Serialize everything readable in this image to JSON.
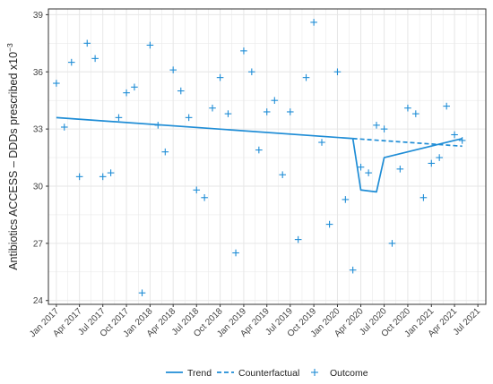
{
  "colors": {
    "series": "#1f8dd6",
    "grid": "#e6e6e6",
    "panel_border": "#333333",
    "text": "#444444"
  },
  "chart_data": {
    "type": "line",
    "ylabel": "Antibiotics ACCESS – DDDs prescribed x10",
    "ylabel_exponent": "−3",
    "xlim": [
      "2016-12-01",
      "2021-08-01"
    ],
    "ylim": [
      23.8,
      39.3
    ],
    "y_ticks": [
      24,
      27,
      30,
      33,
      36,
      39
    ],
    "y_tick_labels": [
      "24",
      "27",
      "30",
      "33",
      "36",
      "39"
    ],
    "x_ticks": [
      "2017-01-01",
      "2017-04-01",
      "2017-07-01",
      "2017-10-01",
      "2018-01-01",
      "2018-04-01",
      "2018-07-01",
      "2018-10-01",
      "2019-01-01",
      "2019-04-01",
      "2019-07-01",
      "2019-10-01",
      "2020-01-01",
      "2020-04-01",
      "2020-07-01",
      "2020-10-01",
      "2021-01-01",
      "2021-04-01",
      "2021-07-01"
    ],
    "x_tick_labels": [
      "Jan 2017",
      "Apr 2017",
      "Jul 2017",
      "Oct 2017",
      "Jan 2018",
      "Apr 2018",
      "Jul 2018",
      "Oct 2018",
      "Jan 2019",
      "Apr 2019",
      "Jul 2019",
      "Oct 2019",
      "Jan 2020",
      "Apr 2020",
      "Jul 2020",
      "Oct 2020",
      "Jan 2021",
      "Apr 2021",
      "Jul 2021"
    ],
    "grid": true,
    "legend_position": "bottom",
    "series": [
      {
        "name": "Outcome",
        "type": "scatter",
        "marker": "+",
        "x": [
          "2017-01-01",
          "2017-02-01",
          "2017-03-01",
          "2017-04-01",
          "2017-05-01",
          "2017-06-01",
          "2017-07-01",
          "2017-08-01",
          "2017-09-01",
          "2017-10-01",
          "2017-11-01",
          "2017-12-01",
          "2018-01-01",
          "2018-02-01",
          "2018-03-01",
          "2018-04-01",
          "2018-05-01",
          "2018-06-01",
          "2018-07-01",
          "2018-08-01",
          "2018-09-01",
          "2018-10-01",
          "2018-11-01",
          "2018-12-01",
          "2019-01-01",
          "2019-02-01",
          "2019-03-01",
          "2019-04-01",
          "2019-05-01",
          "2019-06-01",
          "2019-07-01",
          "2019-08-01",
          "2019-09-01",
          "2019-10-01",
          "2019-11-01",
          "2019-12-01",
          "2020-01-01",
          "2020-02-01",
          "2020-03-01",
          "2020-04-01",
          "2020-05-01",
          "2020-06-01",
          "2020-07-01",
          "2020-08-01",
          "2020-09-01",
          "2020-10-01",
          "2020-11-01",
          "2020-12-01",
          "2021-01-01",
          "2021-02-01",
          "2021-03-01",
          "2021-04-01",
          "2021-05-01"
        ],
        "y": [
          35.4,
          33.1,
          36.5,
          30.5,
          37.5,
          36.7,
          30.5,
          30.7,
          33.6,
          34.9,
          35.2,
          24.4,
          37.4,
          33.2,
          31.8,
          36.1,
          35.0,
          33.6,
          29.8,
          29.4,
          34.1,
          35.7,
          33.8,
          26.5,
          37.1,
          36.0,
          31.9,
          33.9,
          34.5,
          30.6,
          33.9,
          27.2,
          35.7,
          38.6,
          32.3,
          28.0,
          36.0,
          29.3,
          25.6,
          31.0,
          30.7,
          33.2,
          33.0,
          27.0,
          30.9,
          34.1,
          33.8,
          29.4,
          31.2,
          31.5,
          34.2,
          32.7,
          32.4
        ]
      },
      {
        "name": "Trend",
        "type": "line",
        "style": "solid",
        "segments": [
          {
            "x": [
              "2017-01-01",
              "2020-03-01"
            ],
            "y": [
              33.6,
              32.5
            ]
          },
          {
            "x": [
              "2020-03-01",
              "2020-04-01",
              "2020-06-01",
              "2020-07-01",
              "2021-05-01"
            ],
            "y": [
              32.5,
              29.8,
              29.7,
              31.5,
              32.5
            ]
          }
        ]
      },
      {
        "name": "Counterfactual",
        "type": "line",
        "style": "dashed",
        "segments": [
          {
            "x": [
              "2020-03-01",
              "2021-05-01"
            ],
            "y": [
              32.5,
              32.1
            ]
          }
        ]
      }
    ]
  }
}
